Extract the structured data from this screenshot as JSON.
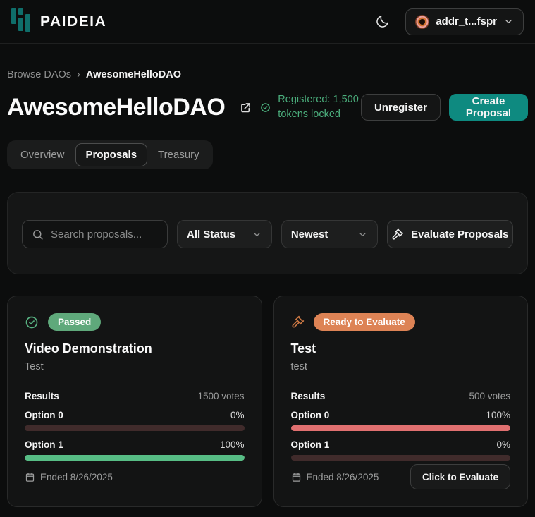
{
  "header": {
    "brand": "PAIDEIA",
    "wallet": {
      "address": "addr_t...fspr"
    }
  },
  "breadcrumb": {
    "parent": "Browse DAOs",
    "separator": "›",
    "current": "AwesomeHelloDAO"
  },
  "dao": {
    "title": "AwesomeHelloDAO",
    "registered_text": "Registered: 1,500 tokens locked",
    "unregister_label": "Unregister",
    "create_proposal_label": "Create Proposal"
  },
  "tabs": {
    "overview": "Overview",
    "proposals": "Proposals",
    "treasury": "Treasury"
  },
  "filters": {
    "search_placeholder": "Search proposals...",
    "status_value": "All Status",
    "sort_value": "Newest",
    "evaluate_label": "Evaluate Proposals"
  },
  "proposals": [
    {
      "status": "Passed",
      "status_icon": "check-circle-icon",
      "badge_color": "#5fa97b",
      "title": "Video Demonstration",
      "description": "Test",
      "results_label": "Results",
      "votes": "1500 votes",
      "options": [
        {
          "label": "Option 0",
          "percent": "0%",
          "value": 0,
          "color": "#e07070"
        },
        {
          "label": "Option 1",
          "percent": "100%",
          "value": 100,
          "color": "#57bd85"
        }
      ],
      "ended": "Ended 8/26/2025"
    },
    {
      "status": "Ready to Evaluate",
      "status_icon": "gavel-icon",
      "badge_color": "#dd8355",
      "title": "Test",
      "description": "test",
      "results_label": "Results",
      "votes": "500 votes",
      "options": [
        {
          "label": "Option 0",
          "percent": "100%",
          "value": 100,
          "color": "#e07070"
        },
        {
          "label": "Option 1",
          "percent": "0%",
          "value": 0,
          "color": "#57bd85"
        }
      ],
      "ended": "Ended 8/26/2025",
      "action_label": "Click to Evaluate"
    }
  ],
  "colors": {
    "accent_teal": "#0e8a80",
    "success_green": "#4bae7c",
    "warning_orange": "#dd8355",
    "danger_red": "#e07070",
    "bar_track": "#402b2b"
  }
}
